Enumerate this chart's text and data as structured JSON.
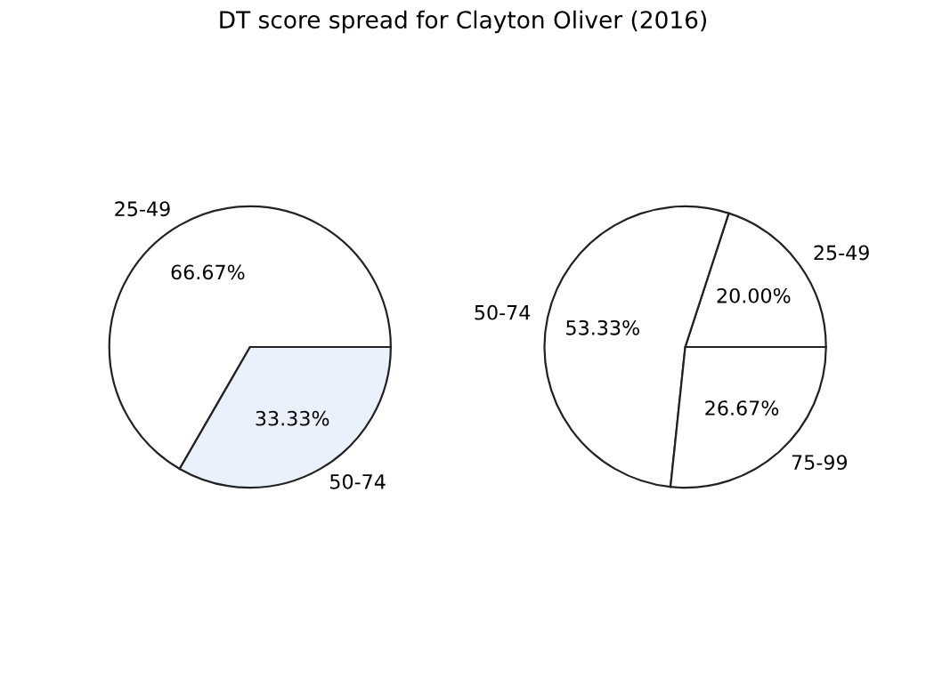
{
  "chart_data": [
    {
      "type": "pie",
      "title": "DT score spread for Clayton Oliver (2016)",
      "categories": [
        "25-49",
        "50-74"
      ],
      "values": [
        66.67,
        33.33
      ],
      "value_labels": [
        "66.67%",
        "33.33%"
      ],
      "colors": [
        "#ffffff",
        "#eaf0fc"
      ],
      "legend": false
    },
    {
      "type": "pie",
      "categories": [
        "25-49",
        "50-74",
        "75-99"
      ],
      "values": [
        20.0,
        53.33,
        26.67
      ],
      "value_labels": [
        "20.00%",
        "53.33%",
        "26.67%"
      ],
      "colors": [
        "#ffffff",
        "#ffffff",
        "#ffffff"
      ],
      "legend": false
    }
  ]
}
